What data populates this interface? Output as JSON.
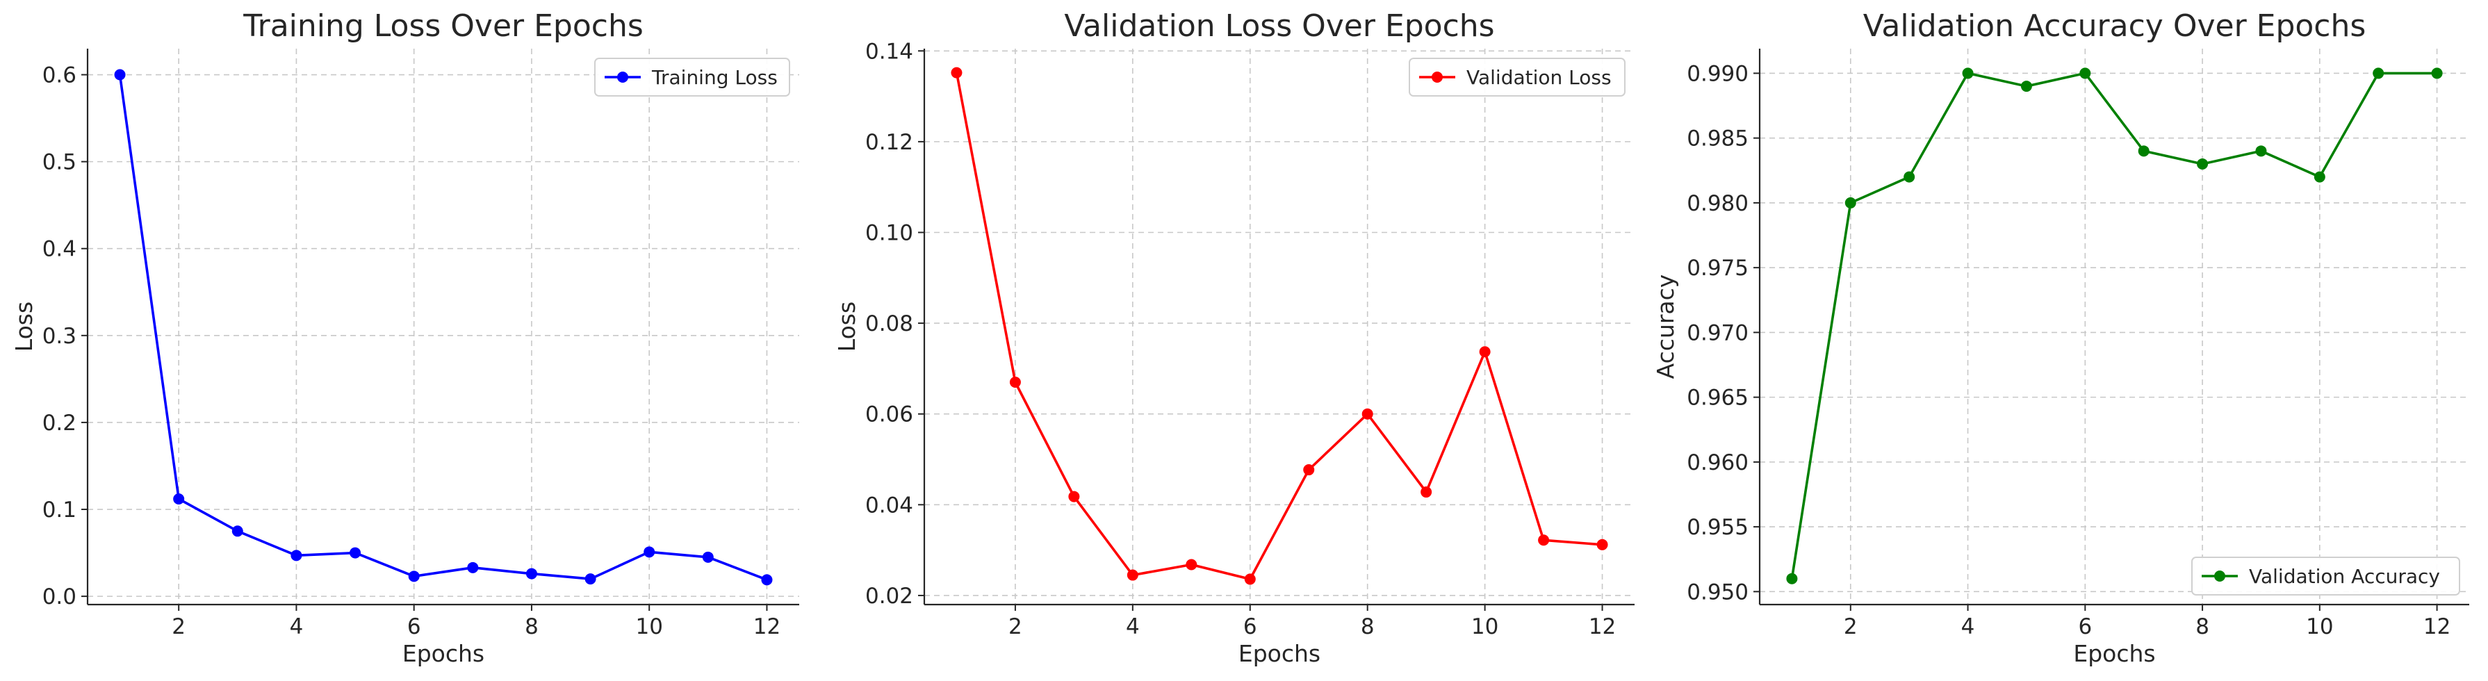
{
  "chart_data": [
    {
      "type": "line",
      "title": "Training Loss Over Epochs",
      "xlabel": "Epochs",
      "ylabel": "Loss",
      "x": [
        1,
        2,
        3,
        4,
        5,
        6,
        7,
        8,
        9,
        10,
        11,
        12
      ],
      "xticks": [
        2,
        4,
        6,
        8,
        10,
        12
      ],
      "xlim": [
        0.45,
        12.55
      ],
      "yticks": [
        0.0,
        0.1,
        0.2,
        0.3,
        0.4,
        0.5,
        0.6
      ],
      "ytick_labels": [
        "0.0",
        "0.1",
        "0.2",
        "0.3",
        "0.4",
        "0.5",
        "0.6"
      ],
      "ylim": [
        -0.0095,
        0.63
      ],
      "grid": true,
      "legend_position": "top-right",
      "series": [
        {
          "name": "Training Loss",
          "color": "#0000ff",
          "marker": "circle",
          "values": [
            0.6,
            0.112,
            0.075,
            0.047,
            0.05,
            0.023,
            0.033,
            0.026,
            0.02,
            0.051,
            0.045,
            0.019
          ]
        }
      ]
    },
    {
      "type": "line",
      "title": "Validation Loss Over Epochs",
      "xlabel": "Epochs",
      "ylabel": "Loss",
      "x": [
        1,
        2,
        3,
        4,
        5,
        6,
        7,
        8,
        9,
        10,
        11,
        12
      ],
      "xticks": [
        2,
        4,
        6,
        8,
        10,
        12
      ],
      "xlim": [
        0.45,
        12.55
      ],
      "yticks": [
        0.02,
        0.04,
        0.06,
        0.08,
        0.1,
        0.12,
        0.14
      ],
      "ytick_labels": [
        "0.02",
        "0.04",
        "0.06",
        "0.08",
        "0.10",
        "0.12",
        "0.14"
      ],
      "ylim": [
        0.018,
        0.1405
      ],
      "grid": true,
      "legend_position": "top-right",
      "series": [
        {
          "name": "Validation Loss",
          "color": "#ff0000",
          "marker": "circle",
          "values": [
            0.1352,
            0.067,
            0.0418,
            0.0245,
            0.0268,
            0.0236,
            0.0477,
            0.06,
            0.0428,
            0.0737,
            0.0322,
            0.0312
          ]
        }
      ]
    },
    {
      "type": "line",
      "title": "Validation Accuracy Over Epochs",
      "xlabel": "Epochs",
      "ylabel": "Accuracy",
      "x": [
        1,
        2,
        3,
        4,
        5,
        6,
        7,
        8,
        9,
        10,
        11,
        12
      ],
      "xticks": [
        2,
        4,
        6,
        8,
        10,
        12
      ],
      "xlim": [
        0.45,
        12.55
      ],
      "yticks": [
        0.95,
        0.955,
        0.96,
        0.965,
        0.97,
        0.975,
        0.98,
        0.985,
        0.99
      ],
      "ytick_labels": [
        "0.950",
        "0.955",
        "0.960",
        "0.965",
        "0.970",
        "0.975",
        "0.980",
        "0.985",
        "0.990"
      ],
      "ylim": [
        0.949,
        0.9919
      ],
      "grid": true,
      "legend_position": "bottom-right",
      "series": [
        {
          "name": "Validation Accuracy",
          "color": "#008000",
          "marker": "circle",
          "values": [
            0.951,
            0.98,
            0.982,
            0.99,
            0.989,
            0.99,
            0.984,
            0.983,
            0.984,
            0.982,
            0.99,
            0.99
          ]
        }
      ]
    }
  ]
}
